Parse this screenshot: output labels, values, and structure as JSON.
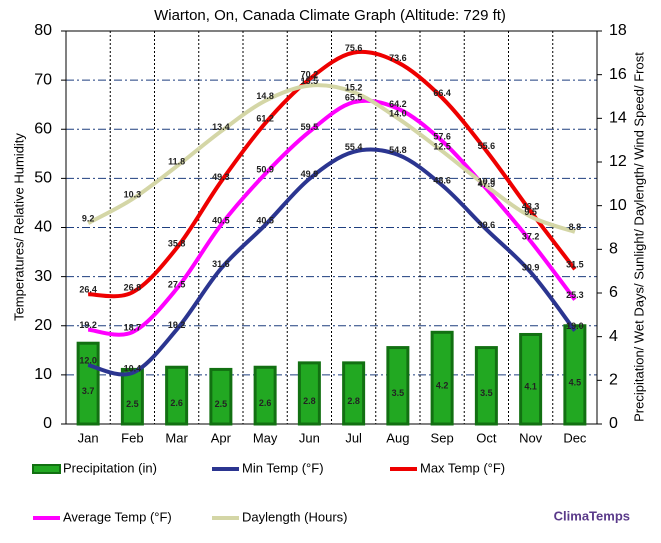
{
  "chart_data": {
    "type": "combo",
    "title": "Wiarton, On, Canada Climate Graph (Altitude: 729 ft)",
    "y_label": "Temperatures/ Relative Humidity",
    "y2_label": "Precipitation/ Wet Days/ Sunlight/ Daylength/ Wind Speed/ Frost",
    "attribution": "ClimaTemps",
    "legend": "bottom",
    "grid": true,
    "categories": [
      "Jan",
      "Feb",
      "Mar",
      "Apr",
      "May",
      "Jun",
      "Jul",
      "Aug",
      "Sep",
      "Oct",
      "Nov",
      "Dec"
    ],
    "ylim": [
      0,
      80
    ],
    "yticks": [
      0,
      10,
      20,
      30,
      40,
      50,
      60,
      70,
      80
    ],
    "y2lim": [
      0,
      18
    ],
    "y2ticks": [
      0,
      2,
      4,
      6,
      8,
      10,
      12,
      14,
      16,
      18
    ],
    "series": [
      {
        "name": "Precipitation (in)",
        "type": "bar",
        "axis": "y2",
        "color": "#22a822",
        "values": [
          3.7,
          2.5,
          2.6,
          2.5,
          2.6,
          2.8,
          2.8,
          3.5,
          4.2,
          3.5,
          4.1,
          4.5
        ],
        "value_labels": [
          "3.7",
          "2.5",
          "2.6",
          "2.5",
          "2.6",
          "2.8",
          "2.8",
          "3.5",
          "4.2",
          "3.5",
          "4.1",
          "4.5"
        ]
      },
      {
        "name": "Min Temp (°F)",
        "type": "line",
        "color": "#2b3590",
        "values": [
          12.0,
          10.4,
          19.2,
          31.6,
          40.5,
          49.9,
          55.4,
          54.8,
          48.6,
          39.6,
          30.9,
          19.0
        ],
        "value_labels": [
          "12.0",
          "10.4",
          "19.2",
          "31.6",
          "40.5",
          "49.9",
          "55.4",
          "54.8",
          "48.6",
          "39.6",
          "30.9",
          "19.0"
        ]
      },
      {
        "name": "Max Temp (°F)",
        "type": "line",
        "color": "#ee0000",
        "values": [
          26.4,
          26.8,
          35.8,
          49.3,
          61.2,
          70.2,
          75.6,
          73.6,
          66.4,
          55.6,
          43.3,
          31.5
        ],
        "value_labels": [
          "26.4",
          "26.8",
          "35.8",
          "49.3",
          "61.2",
          "70.2",
          "75.6",
          "73.6",
          "66.4",
          "55.6",
          "43.3",
          "31.5"
        ]
      },
      {
        "name": "Average Temp (°F)",
        "type": "line",
        "color": "#ff00ff",
        "values": [
          19.2,
          18.7,
          27.5,
          40.5,
          50.9,
          59.5,
          65.5,
          64.2,
          57.6,
          47.9,
          37.2,
          25.3
        ],
        "value_labels": [
          "19.2",
          "18.7",
          "27.5",
          "40.5",
          "50.9",
          "59.5",
          "65.5",
          "64.2",
          "57.6",
          "47.9",
          "37.2",
          "25.3"
        ]
      },
      {
        "name": "Daylength (Hours)",
        "type": "line",
        "axis": "y2",
        "color": "#d4d6a6",
        "values": [
          9.2,
          10.3,
          11.8,
          13.4,
          14.8,
          15.5,
          15.2,
          14.0,
          12.5,
          10.9,
          9.5,
          8.8
        ],
        "value_labels": [
          "9.2",
          "10.3",
          "11.8",
          "13.4",
          "14.8",
          "15.5",
          "15.2",
          "14.0",
          "12.5",
          "10.9",
          "9.5",
          "8.8"
        ]
      }
    ]
  }
}
